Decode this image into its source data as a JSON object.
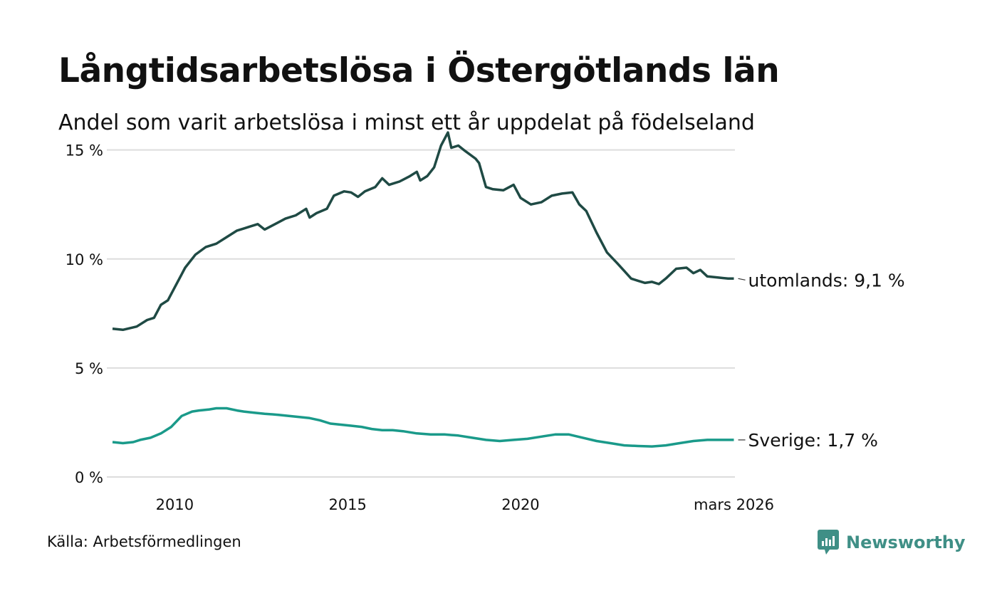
{
  "header": {
    "title": "Långtidsarbetslösa i Östergötlands län",
    "subtitle": "Andel som varit arbetslösa i minst ett år uppdelat på födelseland"
  },
  "footer": {
    "source": "Källa: Arbetsförmedlingen",
    "brand": "Newsworthy"
  },
  "colors": {
    "utomlands": "#1f4a44",
    "sverige": "#1a9a8a",
    "grid": "#dddddd",
    "brand": "#3f8f86"
  },
  "chart_data": {
    "type": "line",
    "title": "Långtidsarbetslösa i Östergötlands län",
    "subtitle": "Andel som varit arbetslösa i minst ett år uppdelat på födelseland",
    "xlabel": "",
    "ylabel": "",
    "xlim": [
      2008.2,
      2026.2
    ],
    "ylim": [
      0,
      16
    ],
    "grid": true,
    "x_ticks": [
      {
        "value": 2010,
        "label": "2010"
      },
      {
        "value": 2015,
        "label": "2015"
      },
      {
        "value": 2020,
        "label": "2020"
      },
      {
        "value": 2026.17,
        "label": "mars 2026"
      }
    ],
    "y_ticks": [
      {
        "value": 0,
        "label": "0 %"
      },
      {
        "value": 5,
        "label": "5 %"
      },
      {
        "value": 10,
        "label": "10 %"
      },
      {
        "value": 15,
        "label": "15 %"
      }
    ],
    "series": [
      {
        "name": "utomlands",
        "end_label": "utomlands: 9,1 %",
        "points": [
          [
            2008.2,
            6.8
          ],
          [
            2008.5,
            6.75
          ],
          [
            2008.9,
            6.9
          ],
          [
            2009.2,
            7.2
          ],
          [
            2009.4,
            7.3
          ],
          [
            2009.6,
            7.9
          ],
          [
            2009.8,
            8.1
          ],
          [
            2010.0,
            8.7
          ],
          [
            2010.3,
            9.6
          ],
          [
            2010.6,
            10.2
          ],
          [
            2010.9,
            10.55
          ],
          [
            2011.2,
            10.7
          ],
          [
            2011.5,
            11.0
          ],
          [
            2011.8,
            11.3
          ],
          [
            2012.0,
            11.4
          ],
          [
            2012.2,
            11.5
          ],
          [
            2012.4,
            11.6
          ],
          [
            2012.6,
            11.35
          ],
          [
            2012.9,
            11.6
          ],
          [
            2013.2,
            11.85
          ],
          [
            2013.5,
            12.0
          ],
          [
            2013.8,
            12.3
          ],
          [
            2013.9,
            11.9
          ],
          [
            2014.1,
            12.1
          ],
          [
            2014.4,
            12.3
          ],
          [
            2014.6,
            12.9
          ],
          [
            2014.9,
            13.1
          ],
          [
            2015.1,
            13.05
          ],
          [
            2015.3,
            12.85
          ],
          [
            2015.5,
            13.1
          ],
          [
            2015.8,
            13.3
          ],
          [
            2016.0,
            13.7
          ],
          [
            2016.2,
            13.4
          ],
          [
            2016.5,
            13.55
          ],
          [
            2016.8,
            13.8
          ],
          [
            2017.0,
            14.0
          ],
          [
            2017.1,
            13.6
          ],
          [
            2017.3,
            13.8
          ],
          [
            2017.5,
            14.2
          ],
          [
            2017.7,
            15.2
          ],
          [
            2017.9,
            15.8
          ],
          [
            2018.0,
            15.1
          ],
          [
            2018.2,
            15.2
          ],
          [
            2018.4,
            14.95
          ],
          [
            2018.7,
            14.6
          ],
          [
            2018.8,
            14.4
          ],
          [
            2019.0,
            13.3
          ],
          [
            2019.2,
            13.2
          ],
          [
            2019.5,
            13.15
          ],
          [
            2019.8,
            13.4
          ],
          [
            2020.0,
            12.8
          ],
          [
            2020.3,
            12.5
          ],
          [
            2020.6,
            12.6
          ],
          [
            2020.9,
            12.9
          ],
          [
            2021.2,
            13.0
          ],
          [
            2021.5,
            13.05
          ],
          [
            2021.7,
            12.5
          ],
          [
            2021.9,
            12.2
          ],
          [
            2022.2,
            11.2
          ],
          [
            2022.5,
            10.3
          ],
          [
            2022.8,
            9.8
          ],
          [
            2023.0,
            9.45
          ],
          [
            2023.2,
            9.1
          ],
          [
            2023.4,
            9.0
          ],
          [
            2023.6,
            8.9
          ],
          [
            2023.8,
            8.95
          ],
          [
            2024.0,
            8.85
          ],
          [
            2024.2,
            9.1
          ],
          [
            2024.5,
            9.55
          ],
          [
            2024.8,
            9.6
          ],
          [
            2025.0,
            9.35
          ],
          [
            2025.2,
            9.5
          ],
          [
            2025.4,
            9.2
          ],
          [
            2025.7,
            9.15
          ],
          [
            2026.0,
            9.1
          ],
          [
            2026.17,
            9.1
          ]
        ]
      },
      {
        "name": "Sverige",
        "end_label": "Sverige: 1,7 %",
        "points": [
          [
            2008.2,
            1.6
          ],
          [
            2008.5,
            1.55
          ],
          [
            2008.8,
            1.6
          ],
          [
            2009.0,
            1.7
          ],
          [
            2009.3,
            1.8
          ],
          [
            2009.6,
            2.0
          ],
          [
            2009.9,
            2.3
          ],
          [
            2010.2,
            2.8
          ],
          [
            2010.5,
            3.0
          ],
          [
            2010.7,
            3.05
          ],
          [
            2011.0,
            3.1
          ],
          [
            2011.2,
            3.15
          ],
          [
            2011.5,
            3.15
          ],
          [
            2011.8,
            3.05
          ],
          [
            2012.0,
            3.0
          ],
          [
            2012.3,
            2.95
          ],
          [
            2012.6,
            2.9
          ],
          [
            2013.0,
            2.85
          ],
          [
            2013.3,
            2.8
          ],
          [
            2013.6,
            2.75
          ],
          [
            2013.9,
            2.7
          ],
          [
            2014.2,
            2.6
          ],
          [
            2014.5,
            2.45
          ],
          [
            2014.8,
            2.4
          ],
          [
            2015.1,
            2.35
          ],
          [
            2015.4,
            2.3
          ],
          [
            2015.7,
            2.2
          ],
          [
            2016.0,
            2.15
          ],
          [
            2016.3,
            2.15
          ],
          [
            2016.6,
            2.1
          ],
          [
            2017.0,
            2.0
          ],
          [
            2017.4,
            1.95
          ],
          [
            2017.8,
            1.95
          ],
          [
            2018.2,
            1.9
          ],
          [
            2018.6,
            1.8
          ],
          [
            2019.0,
            1.7
          ],
          [
            2019.4,
            1.65
          ],
          [
            2019.8,
            1.7
          ],
          [
            2020.2,
            1.75
          ],
          [
            2020.6,
            1.85
          ],
          [
            2021.0,
            1.95
          ],
          [
            2021.4,
            1.95
          ],
          [
            2021.8,
            1.8
          ],
          [
            2022.2,
            1.65
          ],
          [
            2022.6,
            1.55
          ],
          [
            2023.0,
            1.45
          ],
          [
            2023.4,
            1.42
          ],
          [
            2023.8,
            1.4
          ],
          [
            2024.2,
            1.45
          ],
          [
            2024.6,
            1.55
          ],
          [
            2025.0,
            1.65
          ],
          [
            2025.4,
            1.7
          ],
          [
            2025.8,
            1.7
          ],
          [
            2026.17,
            1.7
          ]
        ]
      }
    ]
  }
}
